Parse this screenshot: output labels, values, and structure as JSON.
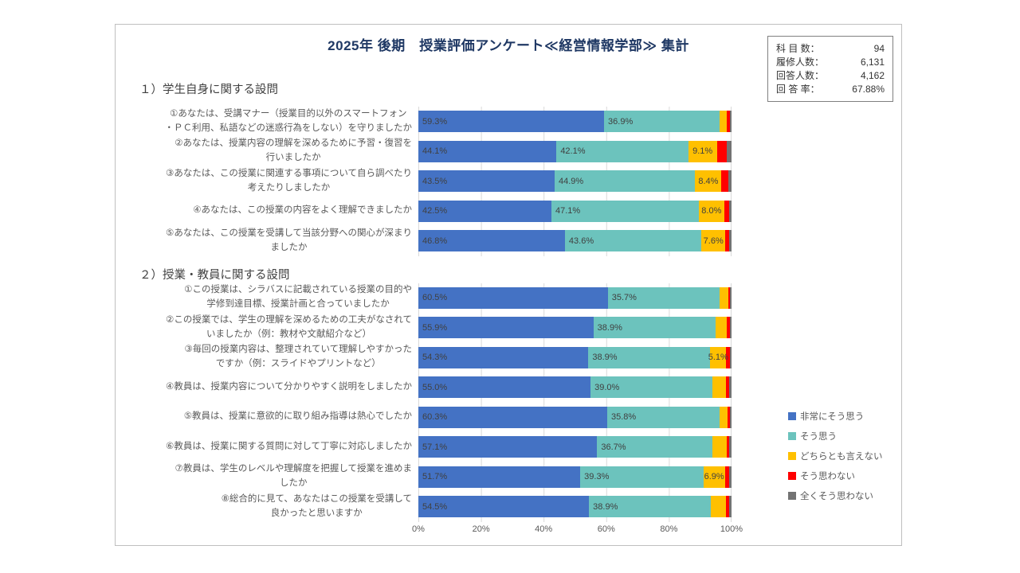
{
  "page": {
    "title": "2025年 後期　授業評価アンケート≪経営情報学部≫ 集計"
  },
  "stats": {
    "rows": [
      {
        "label": "科 目 数：",
        "value": "94"
      },
      {
        "label": "履修人数：",
        "value": "6,131"
      },
      {
        "label": "回答人数：",
        "value": "4,162"
      },
      {
        "label": "回 答 率：",
        "value": "67.88%"
      }
    ]
  },
  "chart_data": {
    "type": "bar",
    "subtype": "horizontal-stacked-100pct",
    "title": "2025年 後期　授業評価アンケート≪経営情報学部≫ 集計",
    "xlabel": "",
    "ylabel": "",
    "xlim": [
      0,
      100
    ],
    "x_ticks": [
      "0%",
      "20%",
      "40%",
      "60%",
      "80%",
      "100%"
    ],
    "grid": true,
    "legend_position": "right",
    "data_label_min_value_shown": 5,
    "legend": [
      {
        "name": "非常にそう思う",
        "color": "#4472C4"
      },
      {
        "name": "そう思う",
        "color": "#6CC3BD"
      },
      {
        "name": "どちらとも言えない",
        "color": "#FFC000"
      },
      {
        "name": "そう思わない",
        "color": "#FF0000"
      },
      {
        "name": "全くそう思わない",
        "color": "#737373"
      }
    ],
    "sections": [
      {
        "heading": "１）学生自身に関する設問",
        "rows": [
          {
            "label_lines": [
              "①あなたは、受講マナー（授業目的以外のスマートフォン",
              "・ＰＣ利用、私語などの迷惑行為をしない）を守りましたか"
            ],
            "values": [
              59.3,
              36.9,
              2.2,
              1.0,
              0.6
            ]
          },
          {
            "label_lines": [
              "②あなたは、授業内容の理解を深めるために予習・復習を",
              "行いましたか"
            ],
            "values": [
              44.1,
              42.1,
              9.1,
              3.3,
              1.4
            ]
          },
          {
            "label_lines": [
              "③あなたは、この授業に関連する事項について自ら調べたり",
              "考えたりしましたか"
            ],
            "values": [
              43.5,
              44.9,
              8.4,
              2.3,
              0.9
            ]
          },
          {
            "label_lines": [
              "④あなたは、この授業の内容をよく理解できましたか"
            ],
            "values": [
              42.5,
              47.1,
              8.0,
              1.7,
              0.7
            ]
          },
          {
            "label_lines": [
              "⑤あなたは、この授業を受講して当該分野への関心が深まり",
              "ましたか"
            ],
            "values": [
              46.8,
              43.6,
              7.6,
              1.3,
              0.7
            ]
          }
        ]
      },
      {
        "heading": "２）授業・教員に関する設問",
        "rows": [
          {
            "label_lines": [
              "①この授業は、シラバスに記載されている授業の目的や",
              "学修到達目標、授業計画と合っていましたか"
            ],
            "values": [
              60.5,
              35.7,
              2.9,
              0.5,
              0.4
            ]
          },
          {
            "label_lines": [
              "②この授業では、学生の理解を深めるための工夫がなされて",
              "いましたか（例：教材や文献紹介など）"
            ],
            "values": [
              55.9,
              38.9,
              3.8,
              1.0,
              0.4
            ]
          },
          {
            "label_lines": [
              "③毎回の授業内容は、整理されていて理解しやすかった",
              "ですか（例：スライドやプリントなど）"
            ],
            "values": [
              54.3,
              38.9,
              5.1,
              1.3,
              0.4
            ]
          },
          {
            "label_lines": [
              "④教員は、授業内容について分かりやすく説明をしましたか"
            ],
            "values": [
              55.0,
              39.0,
              4.2,
              1.1,
              0.7
            ]
          },
          {
            "label_lines": [
              "⑤教員は、授業に意欲的に取り組み指導は熱心でしたか"
            ],
            "values": [
              60.3,
              35.8,
              2.6,
              0.8,
              0.5
            ]
          },
          {
            "label_lines": [
              "⑥教員は、授業に関する質問に対して丁寧に対応しましたか"
            ],
            "values": [
              57.1,
              36.7,
              4.6,
              0.9,
              0.7
            ]
          },
          {
            "label_lines": [
              "⑦教員は、学生のレベルや理解度を把握して授業を進めま",
              "したか"
            ],
            "values": [
              51.7,
              39.3,
              6.9,
              1.4,
              0.7
            ]
          },
          {
            "label_lines": [
              "⑧総合的に見て、あなたはこの授業を受講して",
              "良かったと思いますか"
            ],
            "values": [
              54.5,
              38.9,
              4.8,
              1.1,
              0.7
            ]
          }
        ]
      }
    ]
  }
}
